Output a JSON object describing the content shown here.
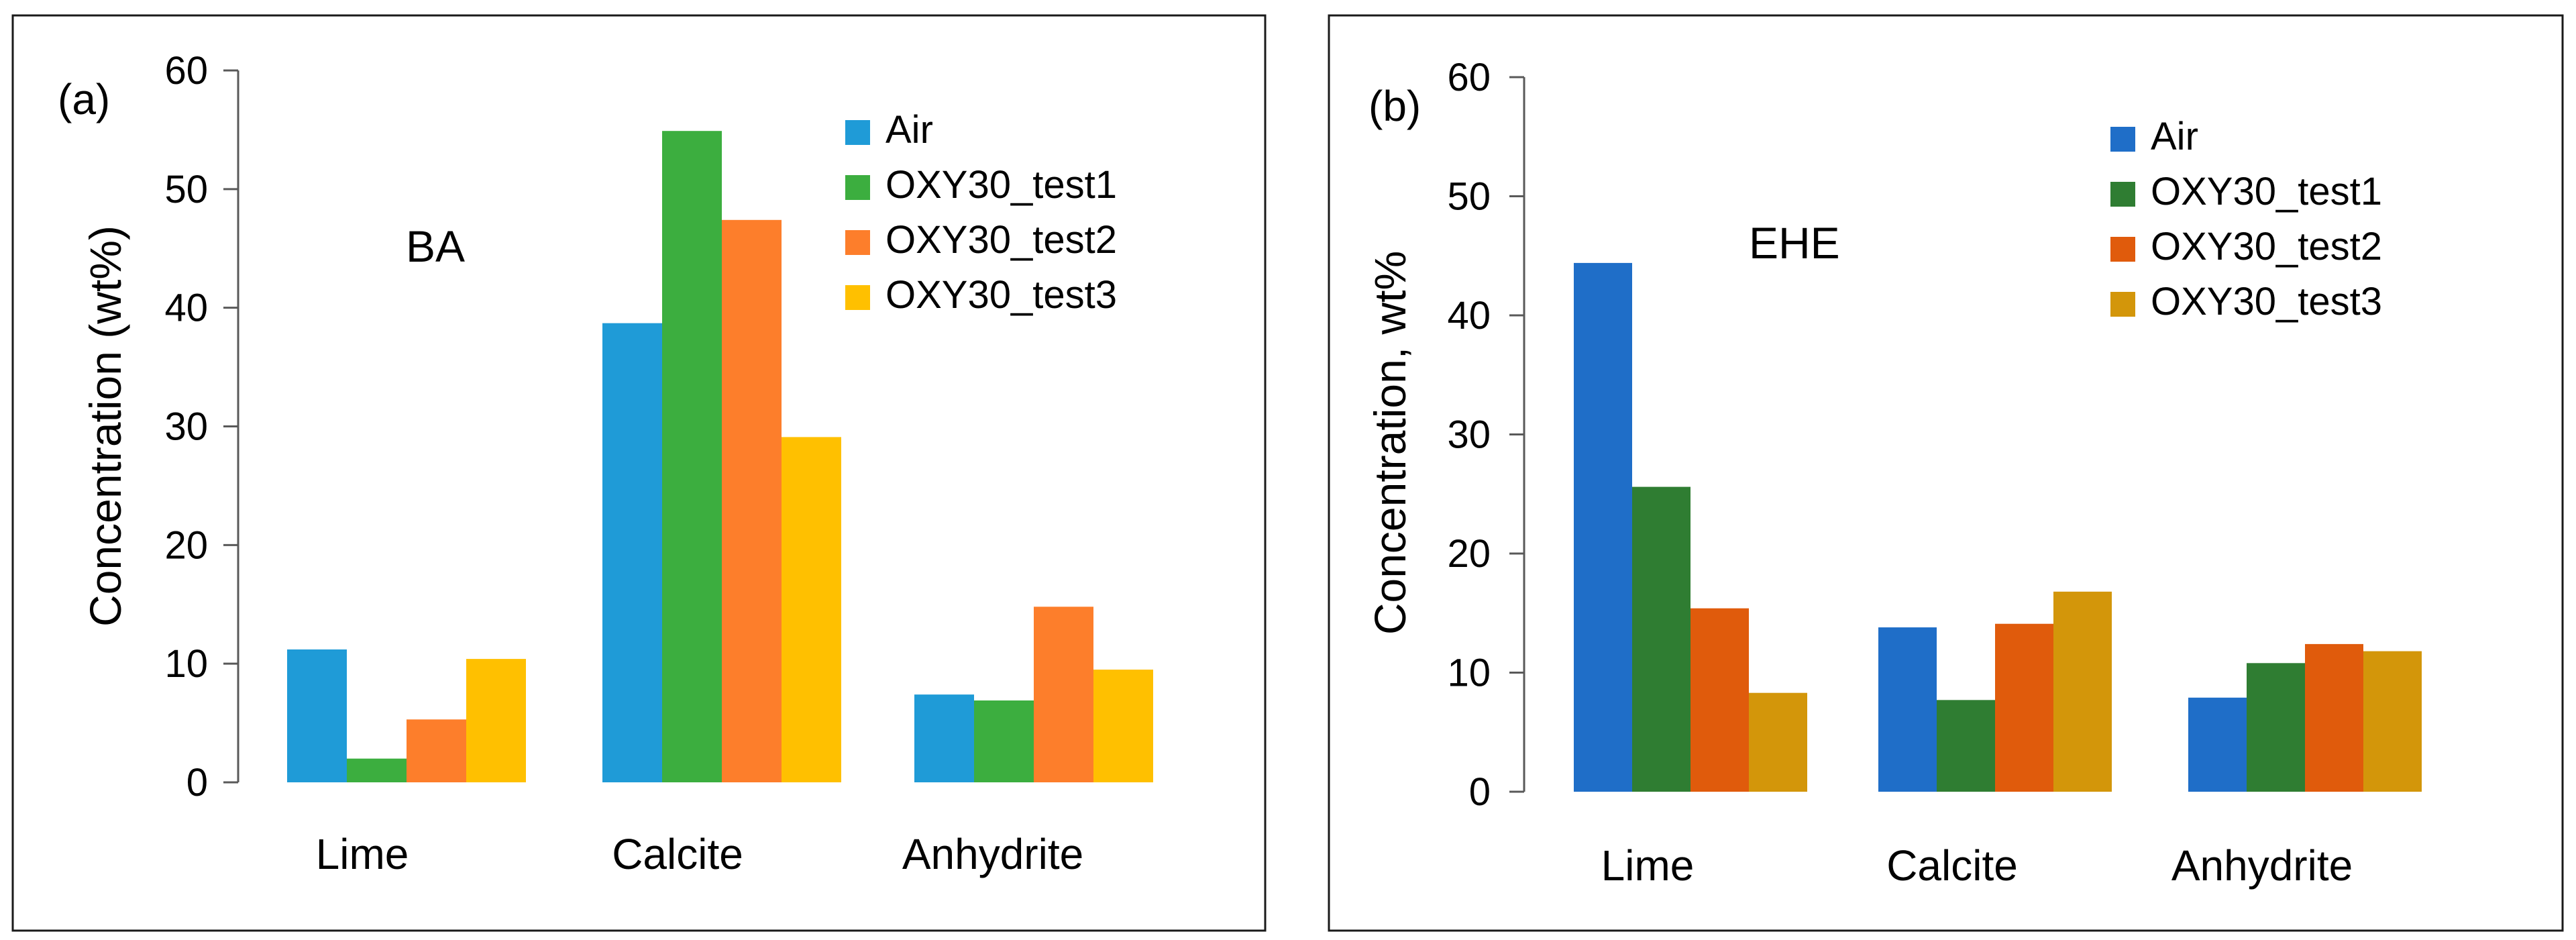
{
  "chart_data": [
    {
      "type": "bar",
      "panel_label": "(a)",
      "inset_label": "BA",
      "categories": [
        "Lime",
        "Calcite",
        "Anhydrite"
      ],
      "series": [
        {
          "name": "Air",
          "color": "#1f9bd7",
          "values": [
            11.2,
            38.7,
            7.4
          ]
        },
        {
          "name": "OXY30_test1",
          "color": "#3cae3f",
          "values": [
            2.0,
            54.9,
            6.9
          ]
        },
        {
          "name": "OXY30_test2",
          "color": "#fd7e2b",
          "values": [
            5.3,
            47.4,
            14.8
          ]
        },
        {
          "name": "OXY30_test3",
          "color": "#ffc000",
          "values": [
            10.4,
            29.1,
            9.5
          ]
        }
      ],
      "ylabel": "Concentration (wt%)",
      "xlabel": "",
      "ylim": [
        0,
        60
      ],
      "yticks": [
        "0",
        "10",
        "20",
        "30",
        "40",
        "50",
        "60"
      ],
      "legend": "top-right"
    },
    {
      "type": "bar",
      "panel_label": "(b)",
      "inset_label": "EHE",
      "categories": [
        "Lime",
        "Calcite",
        "Anhydrite"
      ],
      "series": [
        {
          "name": "Air",
          "color": "#1f6ec8",
          "values": [
            44.4,
            13.8,
            7.9
          ]
        },
        {
          "name": "OXY30_test1",
          "color": "#2f7d32",
          "values": [
            25.6,
            7.7,
            10.8
          ]
        },
        {
          "name": "OXY30_test2",
          "color": "#e05b0c",
          "values": [
            15.4,
            14.1,
            12.4
          ]
        },
        {
          "name": "OXY30_test3",
          "color": "#d3960a",
          "values": [
            8.3,
            16.8,
            11.8
          ]
        }
      ],
      "ylabel": "Concentration, wt%",
      "xlabel": "",
      "ylim": [
        0,
        60
      ],
      "yticks": [
        "0",
        "10",
        "20",
        "30",
        "40",
        "50",
        "60"
      ],
      "legend": "top-right"
    }
  ]
}
